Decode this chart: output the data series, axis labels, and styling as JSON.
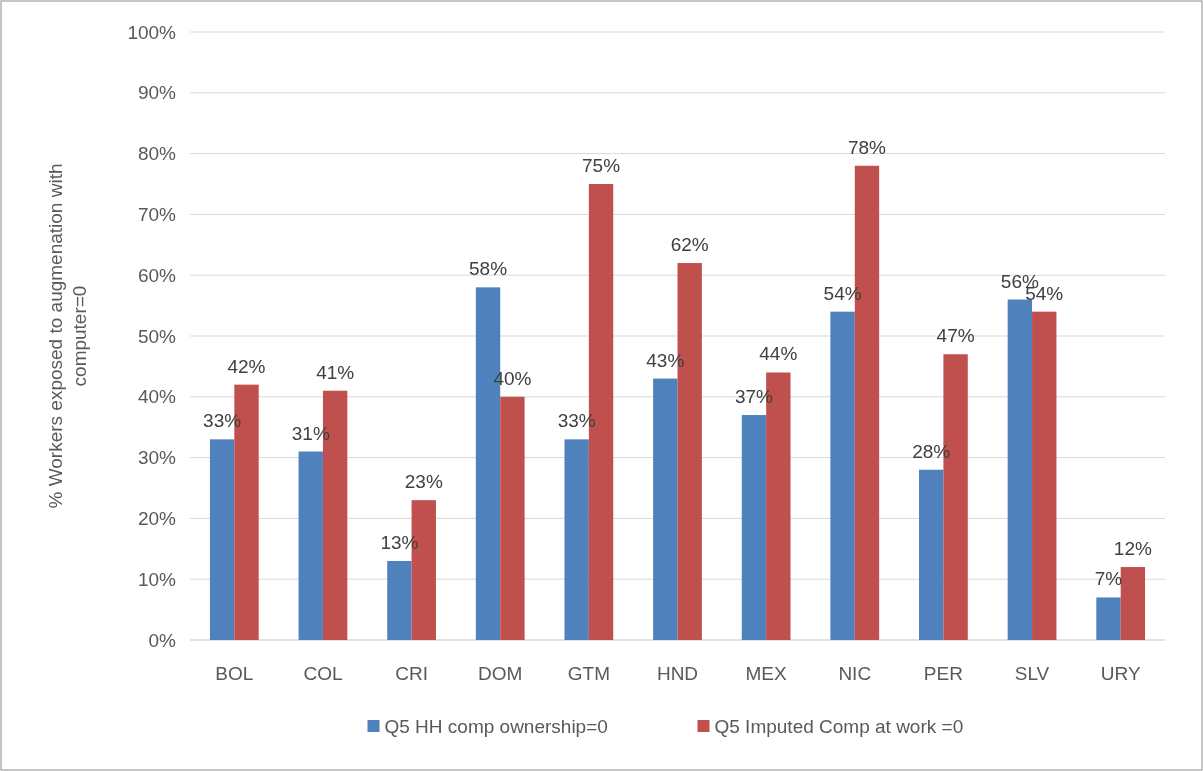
{
  "chart_data": {
    "type": "bar",
    "ylabel": "% Workers exposed to augmenation with computer=0",
    "categories": [
      "BOL",
      "COL",
      "CRI",
      "DOM",
      "GTM",
      "HND",
      "MEX",
      "NIC",
      "PER",
      "SLV",
      "URY"
    ],
    "series": [
      {
        "name": "Q5 HH comp ownership=0",
        "color": "#4f81bd",
        "values": [
          33,
          31,
          13,
          58,
          33,
          43,
          37,
          54,
          28,
          56,
          7
        ],
        "value_labels": [
          "33%",
          "31%",
          "13%",
          "58%",
          "33%",
          "43%",
          "37%",
          "54%",
          "28%",
          "56%",
          "7%"
        ]
      },
      {
        "name": "Q5 Imputed Comp at work =0",
        "color": "#c0504d",
        "values": [
          42,
          41,
          23,
          40,
          75,
          62,
          44,
          78,
          47,
          54,
          12
        ],
        "value_labels": [
          "42%",
          "41%",
          "23%",
          "40%",
          "75%",
          "62%",
          "44%",
          "78%",
          "47%",
          "54%",
          "12%"
        ]
      }
    ],
    "ylim": [
      0,
      100
    ],
    "yticks": [
      {
        "value": 0,
        "label": "0%"
      },
      {
        "value": 10,
        "label": "10%"
      },
      {
        "value": 20,
        "label": "20%"
      },
      {
        "value": 30,
        "label": "30%"
      },
      {
        "value": 40,
        "label": "40%"
      },
      {
        "value": 50,
        "label": "50%"
      },
      {
        "value": 60,
        "label": "60%"
      },
      {
        "value": 70,
        "label": "70%"
      },
      {
        "value": 80,
        "label": "80%"
      },
      {
        "value": 90,
        "label": "90%"
      },
      {
        "value": 100,
        "label": "100%"
      }
    ],
    "grid": "y",
    "legend": "bottom"
  }
}
